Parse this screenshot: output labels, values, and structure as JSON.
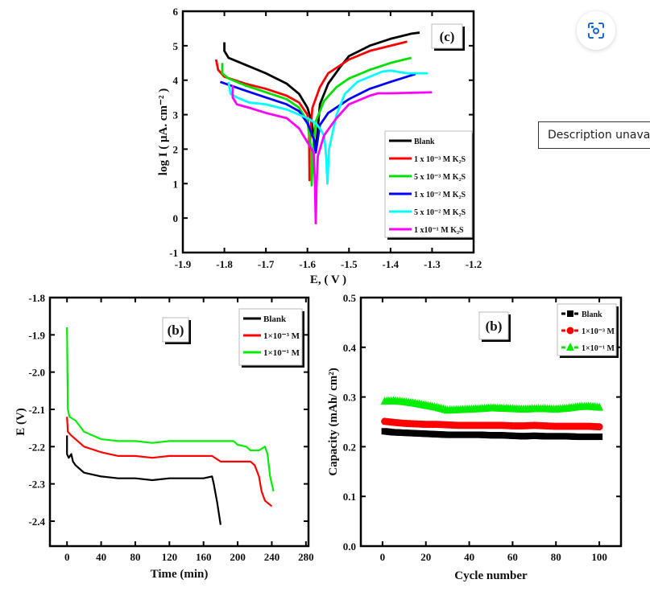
{
  "viewer": {
    "visual_search_icon": "lens-scan-icon",
    "description_text": "Description unavailable",
    "accent_color": "#1a66c9"
  },
  "chart_data": [
    {
      "type": "line",
      "panel_label": "(c)",
      "xlabel": "E, ( V )",
      "ylabel": "log I ( μA. cm⁻² )",
      "xlim": [
        -1.9,
        -1.2
      ],
      "ylim": [
        -1,
        6
      ],
      "xticks": [
        "-1.9",
        "-1.8",
        "-1.7",
        "-1.6",
        "-1.5",
        "-1.4",
        "-1.3",
        "-1.2"
      ],
      "yticks": [
        "-1",
        "0",
        "1",
        "2",
        "3",
        "4",
        "5",
        "6"
      ],
      "legend_position": "center-right",
      "series": [
        {
          "name": "Blank",
          "color": "#000000",
          "points": [
            [
              -1.8,
              5.1
            ],
            [
              -1.8,
              4.85
            ],
            [
              -1.79,
              4.65
            ],
            [
              -1.75,
              4.45
            ],
            [
              -1.7,
              4.2
            ],
            [
              -1.65,
              3.9
            ],
            [
              -1.62,
              3.6
            ],
            [
              -1.6,
              3.2
            ],
            [
              -1.59,
              2.8
            ],
            [
              -1.585,
              2.4
            ],
            [
              -1.58,
              2.0
            ],
            [
              -1.575,
              2.6
            ],
            [
              -1.57,
              3.3
            ],
            [
              -1.55,
              3.9
            ],
            [
              -1.52,
              4.4
            ],
            [
              -1.5,
              4.7
            ],
            [
              -1.45,
              5.0
            ],
            [
              -1.4,
              5.2
            ],
            [
              -1.35,
              5.35
            ],
            [
              -1.33,
              5.38
            ]
          ]
        },
        {
          "name": "1 x 10⁻³ M K₂S",
          "color": "#ff0000",
          "points": [
            [
              -1.82,
              4.6
            ],
            [
              -1.815,
              4.3
            ],
            [
              -1.8,
              4.1
            ],
            [
              -1.75,
              3.9
            ],
            [
              -1.7,
              3.75
            ],
            [
              -1.65,
              3.55
            ],
            [
              -1.62,
              3.35
            ],
            [
              -1.6,
              3.0
            ],
            [
              -1.596,
              2.4
            ],
            [
              -1.595,
              1.1
            ],
            [
              -1.593,
              2.5
            ],
            [
              -1.588,
              3.2
            ],
            [
              -1.57,
              3.8
            ],
            [
              -1.55,
              4.2
            ],
            [
              -1.5,
              4.6
            ],
            [
              -1.45,
              4.85
            ],
            [
              -1.4,
              5.0
            ],
            [
              -1.36,
              5.12
            ]
          ]
        },
        {
          "name": "5 x 10⁻³ M K₂S",
          "color": "#00e000",
          "points": [
            [
              -1.805,
              4.5
            ],
            [
              -1.805,
              4.2
            ],
            [
              -1.79,
              4.05
            ],
            [
              -1.75,
              3.85
            ],
            [
              -1.7,
              3.65
            ],
            [
              -1.65,
              3.45
            ],
            [
              -1.62,
              3.2
            ],
            [
              -1.6,
              2.8
            ],
            [
              -1.591,
              2.0
            ],
            [
              -1.59,
              0.95
            ],
            [
              -1.586,
              2.0
            ],
            [
              -1.58,
              2.8
            ],
            [
              -1.56,
              3.4
            ],
            [
              -1.53,
              3.8
            ],
            [
              -1.5,
              4.05
            ],
            [
              -1.45,
              4.3
            ],
            [
              -1.4,
              4.5
            ],
            [
              -1.35,
              4.65
            ]
          ]
        },
        {
          "name": "1 x 10⁻² M K₂S",
          "color": "#0000ff",
          "points": [
            [
              -1.81,
              3.95
            ],
            [
              -1.75,
              3.7
            ],
            [
              -1.7,
              3.5
            ],
            [
              -1.65,
              3.3
            ],
            [
              -1.62,
              3.1
            ],
            [
              -1.6,
              2.75
            ],
            [
              -1.585,
              2.3
            ],
            [
              -1.58,
              1.9
            ],
            [
              -1.575,
              2.3
            ],
            [
              -1.57,
              2.7
            ],
            [
              -1.55,
              3.05
            ],
            [
              -1.5,
              3.45
            ],
            [
              -1.45,
              3.75
            ],
            [
              -1.4,
              3.95
            ],
            [
              -1.34,
              4.18
            ]
          ]
        },
        {
          "name": "5 x 10⁻² M K₂S",
          "color": "#00ffff",
          "points": [
            [
              -1.79,
              3.95
            ],
            [
              -1.785,
              3.6
            ],
            [
              -1.77,
              3.5
            ],
            [
              -1.74,
              3.35
            ],
            [
              -1.7,
              3.3
            ],
            [
              -1.65,
              3.15
            ],
            [
              -1.6,
              2.9
            ],
            [
              -1.58,
              2.75
            ],
            [
              -1.57,
              2.6
            ],
            [
              -1.56,
              2.4
            ],
            [
              -1.555,
              1.8
            ],
            [
              -1.552,
              1.0
            ],
            [
              -1.548,
              2.0
            ],
            [
              -1.53,
              3.0
            ],
            [
              -1.51,
              3.6
            ],
            [
              -1.48,
              3.95
            ],
            [
              -1.42,
              4.25
            ],
            [
              -1.4,
              4.28
            ],
            [
              -1.36,
              4.2
            ],
            [
              -1.31,
              4.2
            ]
          ]
        },
        {
          "name": "1 x10⁻¹ M K₂S",
          "color": "#ff00ff",
          "points": [
            [
              -1.78,
              3.85
            ],
            [
              -1.78,
              3.5
            ],
            [
              -1.77,
              3.3
            ],
            [
              -1.74,
              3.2
            ],
            [
              -1.7,
              3.05
            ],
            [
              -1.65,
              2.9
            ],
            [
              -1.62,
              2.6
            ],
            [
              -1.6,
              2.2
            ],
            [
              -1.585,
              1.9
            ],
            [
              -1.582,
              1.0
            ],
            [
              -1.58,
              -0.15
            ],
            [
              -1.578,
              1.0
            ],
            [
              -1.575,
              1.8
            ],
            [
              -1.56,
              2.4
            ],
            [
              -1.53,
              2.9
            ],
            [
              -1.5,
              3.3
            ],
            [
              -1.45,
              3.55
            ],
            [
              -1.43,
              3.62
            ],
            [
              -1.4,
              3.62
            ],
            [
              -1.3,
              3.65
            ]
          ]
        }
      ]
    },
    {
      "type": "line",
      "panel_label": "(b)",
      "xlabel": "Time (min)",
      "ylabel": "E (V)",
      "xlim": [
        -20,
        283
      ],
      "ylim": [
        -2.467,
        -1.8
      ],
      "xticks": [
        "0",
        "40",
        "80",
        "120",
        "160",
        "200",
        "240",
        "280"
      ],
      "yticks": [
        "-1.8",
        "-1.9",
        "-2.0",
        "-2.1",
        "-2.2",
        "-2.3",
        "-2.4"
      ],
      "legend_position": "top-right",
      "series": [
        {
          "name": "Blank",
          "color": "#000000",
          "points": [
            [
              0,
              -2.17
            ],
            [
              0,
              -2.22
            ],
            [
              2,
              -2.23
            ],
            [
              5,
              -2.22
            ],
            [
              7,
              -2.24
            ],
            [
              10,
              -2.25
            ],
            [
              20,
              -2.27
            ],
            [
              30,
              -2.275
            ],
            [
              40,
              -2.28
            ],
            [
              60,
              -2.285
            ],
            [
              80,
              -2.285
            ],
            [
              100,
              -2.29
            ],
            [
              120,
              -2.285
            ],
            [
              140,
              -2.285
            ],
            [
              160,
              -2.285
            ],
            [
              170,
              -2.28
            ],
            [
              172,
              -2.3
            ],
            [
              176,
              -2.35
            ],
            [
              180,
              -2.41
            ]
          ]
        },
        {
          "name": "1×10⁻³ M",
          "color": "#ff0000",
          "points": [
            [
              0,
              -2.12
            ],
            [
              1,
              -2.16
            ],
            [
              5,
              -2.17
            ],
            [
              10,
              -2.18
            ],
            [
              20,
              -2.2
            ],
            [
              40,
              -2.215
            ],
            [
              60,
              -2.225
            ],
            [
              80,
              -2.225
            ],
            [
              100,
              -2.23
            ],
            [
              120,
              -2.225
            ],
            [
              140,
              -2.225
            ],
            [
              170,
              -2.225
            ],
            [
              180,
              -2.24
            ],
            [
              190,
              -2.24
            ],
            [
              215,
              -2.24
            ],
            [
              220,
              -2.25
            ],
            [
              225,
              -2.28
            ],
            [
              228,
              -2.32
            ],
            [
              232,
              -2.345
            ],
            [
              240,
              -2.36
            ]
          ]
        },
        {
          "name": "1×10⁻¹ M",
          "color": "#00ee00",
          "points": [
            [
              0,
              -1.88
            ],
            [
              1,
              -2.1
            ],
            [
              3,
              -2.12
            ],
            [
              10,
              -2.13
            ],
            [
              20,
              -2.16
            ],
            [
              30,
              -2.17
            ],
            [
              40,
              -2.18
            ],
            [
              60,
              -2.185
            ],
            [
              80,
              -2.185
            ],
            [
              100,
              -2.19
            ],
            [
              120,
              -2.185
            ],
            [
              160,
              -2.185
            ],
            [
              195,
              -2.185
            ],
            [
              200,
              -2.195
            ],
            [
              210,
              -2.2
            ],
            [
              215,
              -2.21
            ],
            [
              225,
              -2.21
            ],
            [
              232,
              -2.2
            ],
            [
              235,
              -2.22
            ],
            [
              238,
              -2.28
            ],
            [
              242,
              -2.32
            ]
          ]
        }
      ]
    },
    {
      "type": "scatter",
      "panel_label": "(b)",
      "xlabel": "Cycle number",
      "ylabel": "Capacity (mAh/ cm²)",
      "xlim": [
        -10,
        110
      ],
      "ylim": [
        0,
        0.5
      ],
      "xticks": [
        "0",
        "20",
        "40",
        "60",
        "80",
        "100"
      ],
      "yticks": [
        "0.0",
        "0.1",
        "0.2",
        "0.3",
        "0.4",
        "0.5"
      ],
      "legend_position": "top-right",
      "x": [
        1,
        5,
        10,
        15,
        20,
        25,
        30,
        35,
        40,
        45,
        50,
        55,
        60,
        65,
        70,
        75,
        80,
        85,
        90,
        95,
        100
      ],
      "series": [
        {
          "name": "Blank",
          "color": "#000000",
          "marker": "square",
          "values": [
            0.231,
            0.229,
            0.228,
            0.227,
            0.226,
            0.225,
            0.224,
            0.224,
            0.224,
            0.224,
            0.223,
            0.223,
            0.222,
            0.221,
            0.222,
            0.221,
            0.221,
            0.221,
            0.22,
            0.22,
            0.22
          ]
        },
        {
          "name": "1×10⁻³ M",
          "color": "#ff0000",
          "marker": "circle",
          "values": [
            0.251,
            0.249,
            0.247,
            0.246,
            0.245,
            0.245,
            0.244,
            0.243,
            0.243,
            0.243,
            0.243,
            0.243,
            0.242,
            0.242,
            0.243,
            0.242,
            0.241,
            0.241,
            0.241,
            0.241,
            0.24
          ]
        },
        {
          "name": "1×10⁻¹ M",
          "color": "#00ee00",
          "marker": "triangle",
          "values": [
            0.291,
            0.292,
            0.29,
            0.287,
            0.283,
            0.279,
            0.273,
            0.274,
            0.275,
            0.276,
            0.278,
            0.277,
            0.276,
            0.275,
            0.276,
            0.276,
            0.275,
            0.277,
            0.28,
            0.281,
            0.279
          ]
        }
      ]
    }
  ]
}
